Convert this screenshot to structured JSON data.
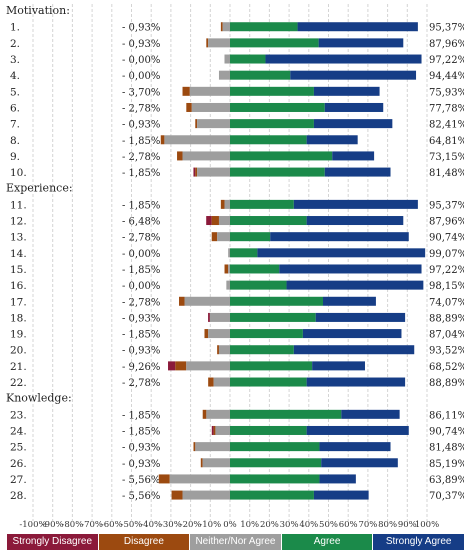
{
  "chart_data": {
    "type": "bar",
    "stacked": "diverging",
    "x_ticks": [
      "-100%",
      "-90%",
      "-80%",
      "-70%",
      "-60%",
      "-50%",
      "-40%",
      "-30%",
      "-20%",
      "-10%",
      "0%",
      "10%",
      "20%",
      "30%",
      "40%",
      "50%",
      "60%",
      "70%",
      "80%",
      "90%",
      "100%"
    ],
    "xlim": [
      -100,
      100
    ],
    "grid": true,
    "legend_position": "bottom",
    "series": [
      {
        "name": "Strongly Disagree",
        "color": "#8b1a3a"
      },
      {
        "name": "Disagree",
        "color": "#9c4a10"
      },
      {
        "name": "Neither/Nor Agree",
        "color": "#9e9e9e"
      },
      {
        "name": "Agree",
        "color": "#1b8a4a"
      },
      {
        "name": "Strongly Agree",
        "color": "#163d86"
      }
    ],
    "groups": [
      {
        "label": "Motivation:",
        "items": [
          {
            "label": "1.",
            "neg_label": "- 0,93%",
            "pos_label": "95,37%",
            "sd": 0,
            "d": 0.93,
            "n": 3.7,
            "a": 34.3,
            "sa": 61.07
          },
          {
            "label": "2.",
            "neg_label": "- 0,93%",
            "pos_label": "87,96%",
            "sd": 0,
            "d": 0.93,
            "n": 11.1,
            "a": 45.0,
            "sa": 42.96
          },
          {
            "label": "3.",
            "neg_label": "- 0,00%",
            "pos_label": "97,22%",
            "sd": 0,
            "d": 0,
            "n": 2.8,
            "a": 18.0,
            "sa": 79.22
          },
          {
            "label": "4.",
            "neg_label": "- 0,00%",
            "pos_label": "94,44%",
            "sd": 0,
            "d": 0,
            "n": 5.6,
            "a": 30.6,
            "sa": 63.84
          },
          {
            "label": "5.",
            "neg_label": "- 3,70%",
            "pos_label": "75,93%",
            "sd": 0,
            "d": 3.7,
            "n": 20.4,
            "a": 42.6,
            "sa": 33.33
          },
          {
            "label": "6.",
            "neg_label": "- 2,78%",
            "pos_label": "77,78%",
            "sd": 0,
            "d": 2.78,
            "n": 19.4,
            "a": 48.1,
            "sa": 29.68
          },
          {
            "label": "7.",
            "neg_label": "- 0,93%",
            "pos_label": "82,41%",
            "sd": 0,
            "d": 0.93,
            "n": 16.7,
            "a": 42.6,
            "sa": 39.81
          },
          {
            "label": "8.",
            "neg_label": "- 1,85%",
            "pos_label": "64,81%",
            "sd": 0,
            "d": 1.85,
            "n": 33.3,
            "a": 38.9,
            "sa": 25.91
          },
          {
            "label": "9.",
            "neg_label": "- 2,78%",
            "pos_label": "73,15%",
            "sd": 0,
            "d": 2.78,
            "n": 24.1,
            "a": 51.9,
            "sa": 21.25
          },
          {
            "label": "10.",
            "neg_label": "- 1,85%",
            "pos_label": "81,48%",
            "sd": 0.93,
            "d": 0.92,
            "n": 16.7,
            "a": 48.1,
            "sa": 33.38
          }
        ]
      },
      {
        "label": "Experience:",
        "items": [
          {
            "label": "11.",
            "neg_label": "- 1,85%",
            "pos_label": "95,37%",
            "sd": 0,
            "d": 1.85,
            "n": 2.8,
            "a": 32.4,
            "sa": 62.97
          },
          {
            "label": "12.",
            "neg_label": "- 6,48%",
            "pos_label": "87,96%",
            "sd": 2.78,
            "d": 3.7,
            "n": 5.6,
            "a": 38.9,
            "sa": 49.06
          },
          {
            "label": "13.",
            "neg_label": "- 2,78%",
            "pos_label": "90,74%",
            "sd": 0,
            "d": 2.78,
            "n": 6.5,
            "a": 20.4,
            "sa": 70.34
          },
          {
            "label": "14.",
            "neg_label": "- 0,00%",
            "pos_label": "99,07%",
            "sd": 0,
            "d": 0,
            "n": 0.93,
            "a": 13.9,
            "sa": 85.17
          },
          {
            "label": "15.",
            "neg_label": "- 1,85%",
            "pos_label": "97,22%",
            "sd": 0,
            "d": 1.85,
            "n": 0.93,
            "a": 25.0,
            "sa": 72.22
          },
          {
            "label": "16.",
            "neg_label": "- 0,00%",
            "pos_label": "98,15%",
            "sd": 0,
            "d": 0,
            "n": 1.85,
            "a": 28.7,
            "sa": 69.45
          },
          {
            "label": "17.",
            "neg_label": "- 2,78%",
            "pos_label": "74,07%",
            "sd": 0,
            "d": 2.78,
            "n": 23.1,
            "a": 47.2,
            "sa": 26.87
          },
          {
            "label": "18.",
            "neg_label": "- 0,93%",
            "pos_label": "88,89%",
            "sd": 0.93,
            "d": 0,
            "n": 10.2,
            "a": 43.5,
            "sa": 45.39
          },
          {
            "label": "19.",
            "neg_label": "- 1,85%",
            "pos_label": "87,04%",
            "sd": 0,
            "d": 1.85,
            "n": 11.1,
            "a": 37.0,
            "sa": 50.04
          },
          {
            "label": "20.",
            "neg_label": "- 0,93%",
            "pos_label": "93,52%",
            "sd": 0,
            "d": 0.93,
            "n": 5.6,
            "a": 32.4,
            "sa": 61.12
          }
        ]
      },
      {
        "label": "",
        "items": [
          {
            "label": "21.",
            "neg_label": "- 9,26%",
            "pos_label": "68,52%",
            "sd": 3.7,
            "d": 5.56,
            "n": 22.2,
            "a": 41.7,
            "sa": 26.82
          },
          {
            "label": "22.",
            "neg_label": "- 2,78%",
            "pos_label": "88,89%",
            "sd": 0,
            "d": 2.78,
            "n": 8.3,
            "a": 38.9,
            "sa": 49.99
          }
        ]
      },
      {
        "label": "Knowledge:",
        "items": [
          {
            "label": "23.",
            "neg_label": "- 1,85%",
            "pos_label": "86,11%",
            "sd": 0,
            "d": 1.85,
            "n": 12.0,
            "a": 56.5,
            "sa": 29.61
          },
          {
            "label": "24.",
            "neg_label": "- 1,85%",
            "pos_label": "90,74%",
            "sd": 0.93,
            "d": 0.92,
            "n": 7.4,
            "a": 38.9,
            "sa": 51.84
          },
          {
            "label": "25.",
            "neg_label": "- 0,93%",
            "pos_label": "81,48%",
            "sd": 0,
            "d": 0.93,
            "n": 17.6,
            "a": 45.4,
            "sa": 36.08
          },
          {
            "label": "26.",
            "neg_label": "- 0,93%",
            "pos_label": "85,19%",
            "sd": 0,
            "d": 0.93,
            "n": 13.9,
            "a": 46.3,
            "sa": 38.89
          },
          {
            "label": "27.",
            "neg_label": "- 5,56%",
            "pos_label": "63,89%",
            "sd": 0,
            "d": 5.56,
            "n": 30.6,
            "a": 45.4,
            "sa": 18.49
          },
          {
            "label": "28.",
            "neg_label": "- 5,56%",
            "pos_label": "70,37%",
            "sd": 0,
            "d": 5.56,
            "n": 24.1,
            "a": 42.6,
            "sa": 27.77
          }
        ]
      }
    ]
  }
}
